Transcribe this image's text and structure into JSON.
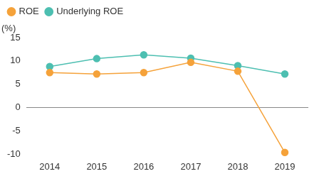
{
  "chart_data": {
    "type": "line",
    "ylabel": "(%)",
    "categories": [
      "2014",
      "2015",
      "2016",
      "2017",
      "2018",
      "2019"
    ],
    "series": [
      {
        "name": "ROE",
        "color": "#f5a23a",
        "marker": "circle",
        "values": [
          7.5,
          7.2,
          7.5,
          9.7,
          7.8,
          -9.6
        ]
      },
      {
        "name": "Underlying ROE",
        "color": "#4dbfb1",
        "marker": "circle",
        "values": [
          8.8,
          10.5,
          11.3,
          10.6,
          9.0,
          7.2
        ]
      }
    ],
    "ylim": [
      -10,
      15
    ],
    "yticks": [
      -10,
      -5,
      0,
      5,
      10,
      15
    ],
    "grid": false,
    "legend": "top-left"
  }
}
